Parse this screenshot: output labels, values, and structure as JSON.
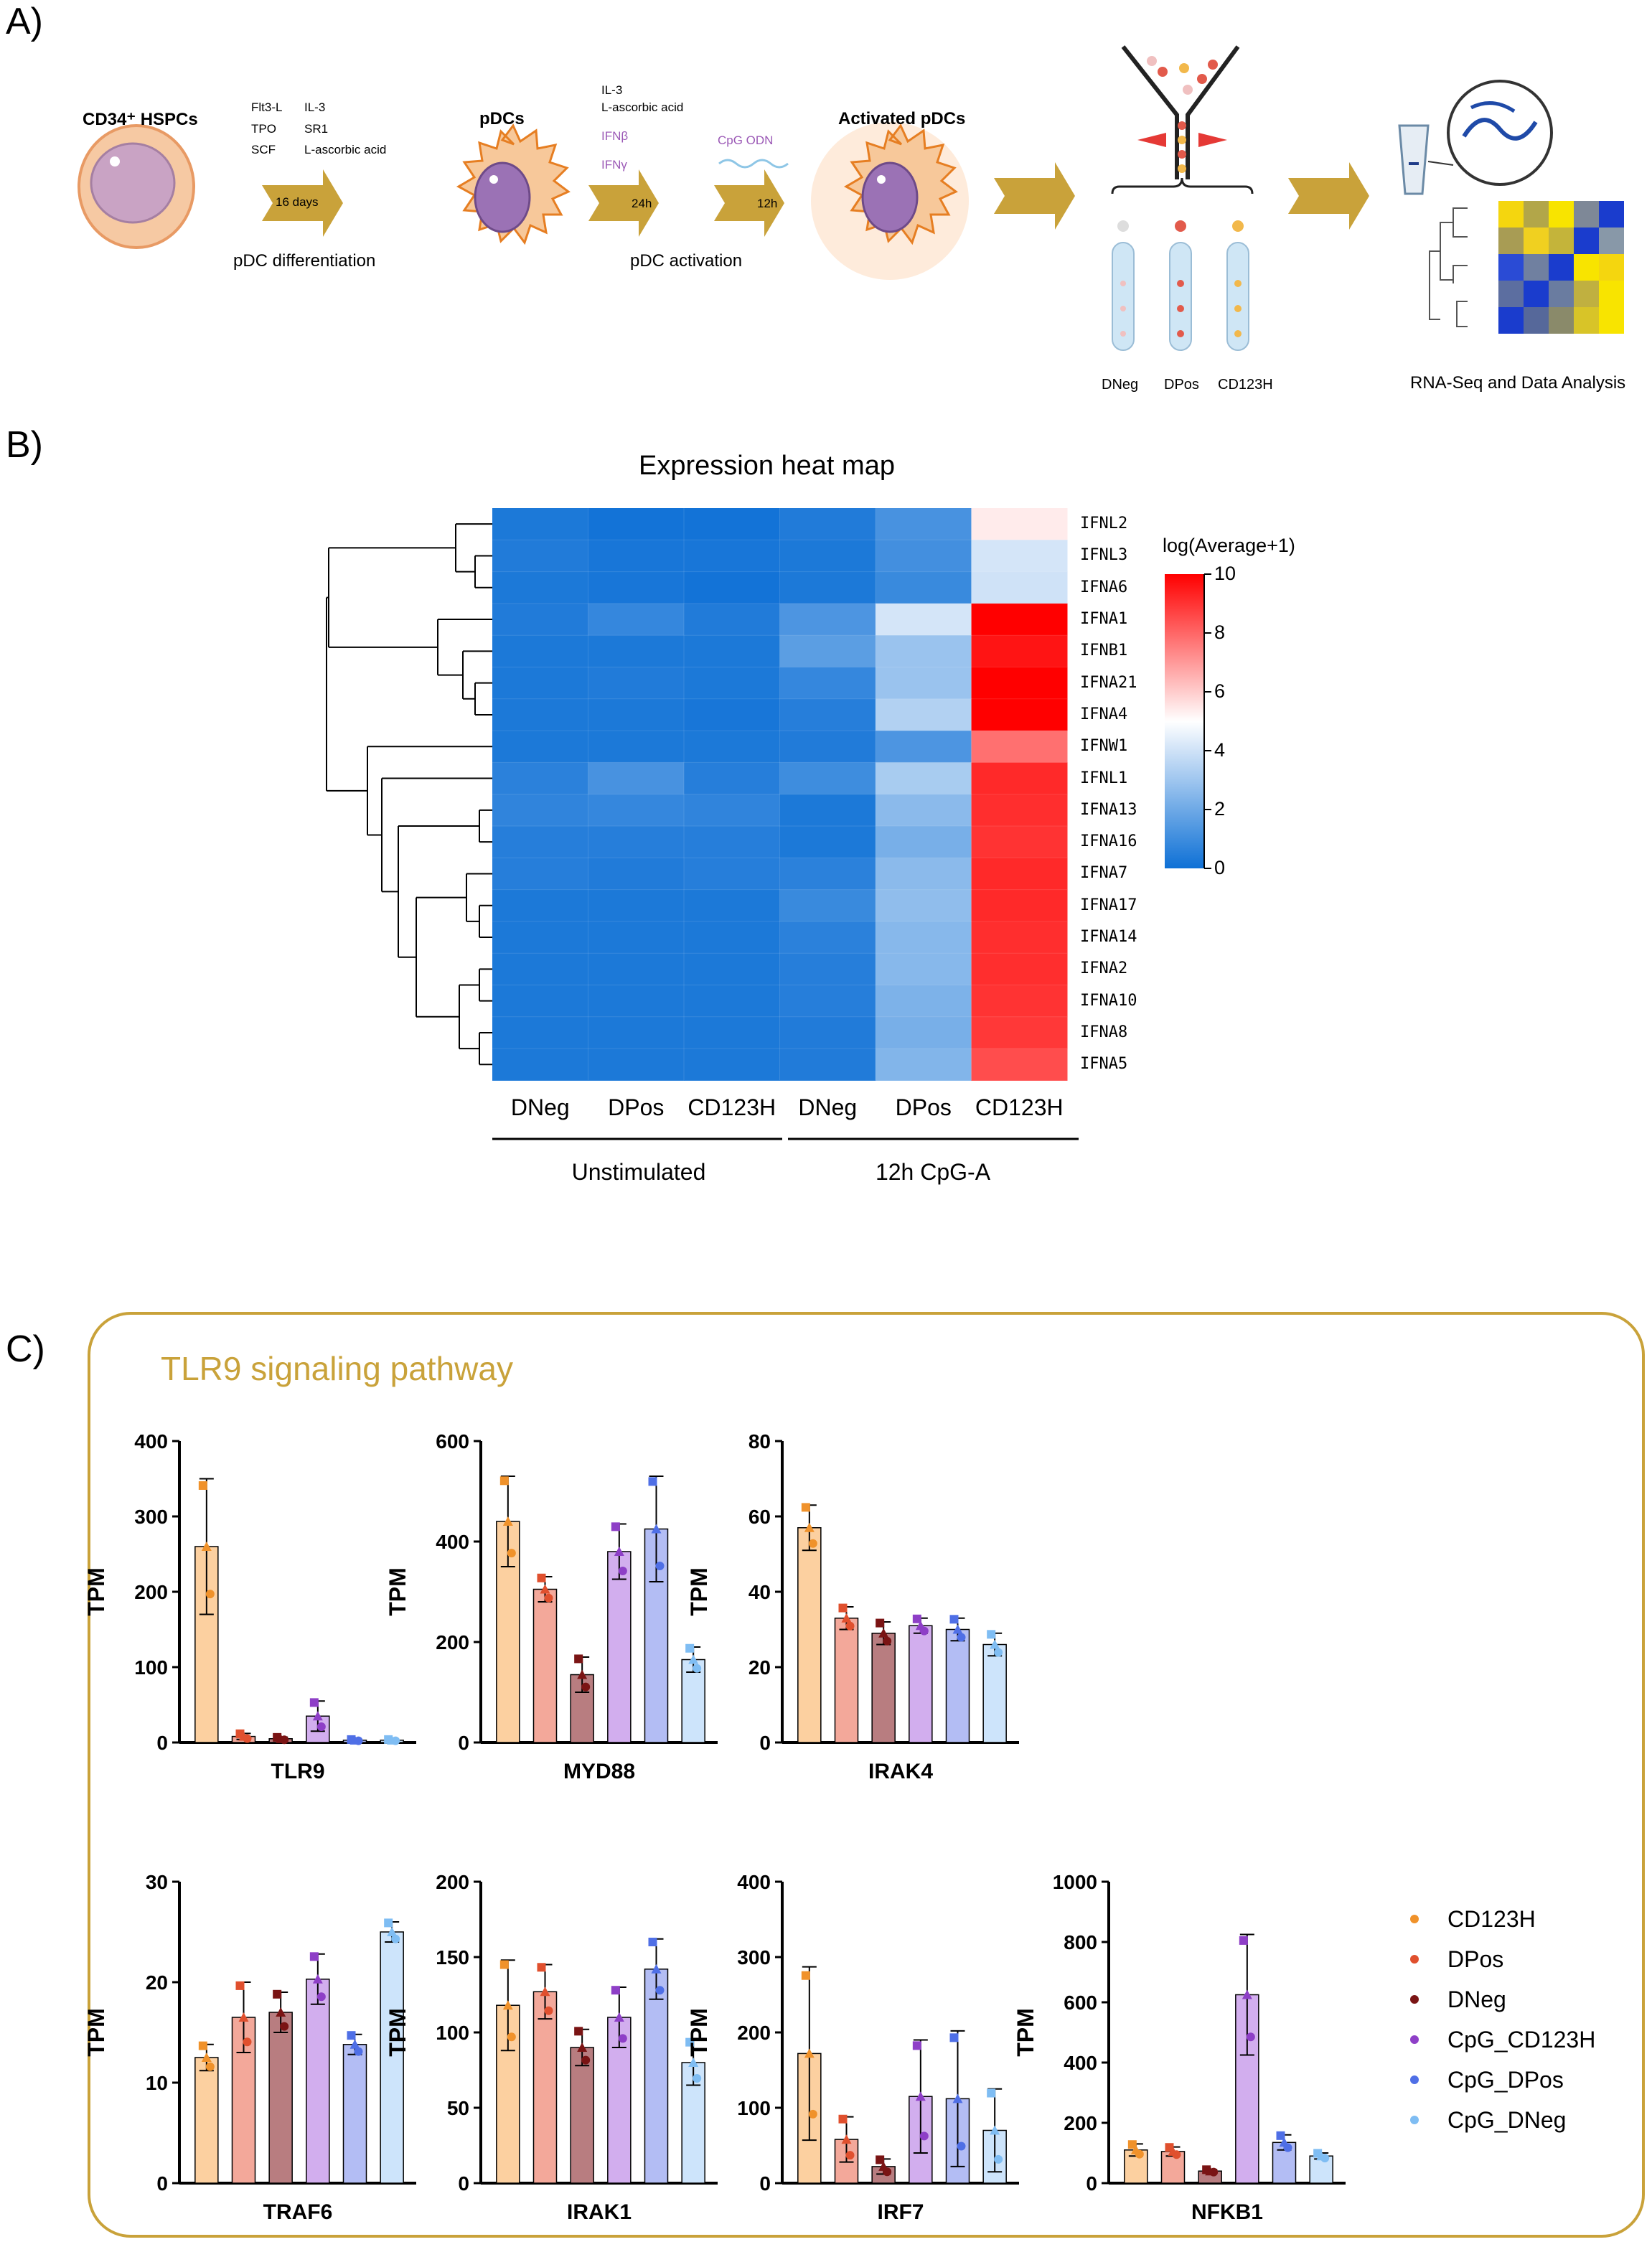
{
  "panel_labels": {
    "a": "A)",
    "b": "B)",
    "c": "C)"
  },
  "panelA": {
    "start_cell": "CD34⁺ HSPCs",
    "diff_factors_col1": [
      "Flt3-L",
      "TPO",
      "SCF"
    ],
    "diff_factors_col2": [
      "IL-3",
      "SR1",
      "L-ascorbic acid"
    ],
    "diff_duration": "16 days",
    "diff_step": "pDC differentiation",
    "pdc_label": "pDCs",
    "act_factors_top": [
      "IL-3",
      "L-ascorbic acid"
    ],
    "act_factors_purple": [
      "IFNβ",
      "IFNγ"
    ],
    "act_duration": "24h",
    "cpg_label": "CpG ODN",
    "cpg_duration": "12h",
    "act_step": "pDC activation",
    "activated_label": "Activated pDCs",
    "tubes": [
      "DNeg",
      "DPos",
      "CD123H"
    ],
    "final_step": "RNA-Seq and Data Analysis"
  },
  "heatmap": {
    "title": "Expression heat map",
    "rows": [
      "IFNL2",
      "IFNL3",
      "IFNA6",
      "IFNA1",
      "IFNB1",
      "IFNA21",
      "IFNA4",
      "IFNW1",
      "IFNL1",
      "IFNA13",
      "IFNA16",
      "IFNA7",
      "IFNA17",
      "IFNA14",
      "IFNA2",
      "IFNA10",
      "IFNA8",
      "IFNA5"
    ],
    "columns": [
      "DNeg",
      "DPos",
      "CD123H",
      "DNeg",
      "DPos",
      "CD123H"
    ],
    "groups": [
      "Unstimulated",
      "12h CpG-A"
    ],
    "colorbar_title": "log(Average+1)",
    "colorbar_ticks": [
      "10",
      "8",
      "6",
      "4",
      "2",
      "0"
    ],
    "values": [
      [
        0.3,
        0.1,
        0.1,
        0.4,
        1.2,
        5.4
      ],
      [
        0.4,
        0.2,
        0.2,
        0.3,
        1.1,
        4.1
      ],
      [
        0.3,
        0.2,
        0.1,
        0.3,
        0.9,
        4.0
      ],
      [
        0.4,
        0.8,
        0.4,
        1.3,
        4.1,
        10.0
      ],
      [
        0.3,
        0.3,
        0.3,
        1.6,
        2.9,
        9.6
      ],
      [
        0.3,
        0.4,
        0.3,
        0.8,
        2.9,
        10.0
      ],
      [
        0.3,
        0.3,
        0.2,
        0.5,
        3.4,
        10.0
      ],
      [
        0.3,
        0.3,
        0.3,
        0.4,
        1.3,
        7.8
      ],
      [
        0.6,
        1.2,
        0.5,
        1.0,
        3.2,
        9.2
      ],
      [
        0.7,
        0.8,
        0.7,
        0.3,
        2.6,
        9.1
      ],
      [
        0.5,
        0.5,
        0.5,
        0.3,
        2.2,
        9.0
      ],
      [
        0.5,
        0.4,
        0.5,
        0.6,
        2.6,
        9.2
      ],
      [
        0.3,
        0.3,
        0.3,
        0.9,
        2.7,
        9.2
      ],
      [
        0.3,
        0.3,
        0.3,
        0.6,
        2.5,
        9.1
      ],
      [
        0.3,
        0.3,
        0.3,
        0.5,
        2.5,
        9.1
      ],
      [
        0.3,
        0.3,
        0.3,
        0.5,
        2.3,
        9.0
      ],
      [
        0.3,
        0.3,
        0.3,
        0.4,
        2.2,
        8.9
      ],
      [
        0.3,
        0.3,
        0.3,
        0.4,
        2.4,
        8.5
      ]
    ]
  },
  "chart_data": [
    {
      "type": "bar",
      "title": "TLR9",
      "ylabel": "TPM",
      "ylim": [
        0,
        400
      ],
      "yticks": [
        0,
        100,
        200,
        300,
        400
      ],
      "categories": [
        "CD123H",
        "DPos",
        "DNeg",
        "CpG_CD123H",
        "CpG_DPos",
        "CpG_DNeg"
      ],
      "values": [
        260,
        8,
        5,
        35,
        3,
        3
      ],
      "errors": [
        90,
        4,
        2,
        20,
        1,
        1
      ]
    },
    {
      "type": "bar",
      "title": "MYD88",
      "ylabel": "TPM",
      "ylim": [
        0,
        600
      ],
      "yticks": [
        0,
        200,
        400,
        600
      ],
      "categories": [
        "CD123H",
        "DPos",
        "DNeg",
        "CpG_CD123H",
        "CpG_DPos",
        "CpG_DNeg"
      ],
      "values": [
        440,
        305,
        135,
        380,
        425,
        165
      ],
      "errors": [
        90,
        25,
        35,
        55,
        105,
        25
      ]
    },
    {
      "type": "bar",
      "title": "IRAK4",
      "ylabel": "TPM",
      "ylim": [
        0,
        80
      ],
      "yticks": [
        0,
        20,
        40,
        60,
        80
      ],
      "categories": [
        "CD123H",
        "DPos",
        "DNeg",
        "CpG_CD123H",
        "CpG_DPos",
        "CpG_DNeg"
      ],
      "values": [
        57,
        33,
        29,
        31,
        30,
        26
      ],
      "errors": [
        6,
        3,
        3,
        2,
        3,
        3
      ]
    },
    {
      "type": "bar",
      "title": "TRAF6",
      "ylabel": "TPM",
      "ylim": [
        0,
        30
      ],
      "yticks": [
        0,
        10,
        20,
        30
      ],
      "categories": [
        "CD123H",
        "DPos",
        "DNeg",
        "CpG_CD123H",
        "CpG_DPos",
        "CpG_DNeg"
      ],
      "values": [
        12.5,
        16.5,
        17,
        20.3,
        13.8,
        25
      ],
      "errors": [
        1.3,
        3.5,
        2,
        2.5,
        1,
        1
      ]
    },
    {
      "type": "bar",
      "title": "IRAK1",
      "ylabel": "TPM",
      "ylim": [
        0,
        200
      ],
      "yticks": [
        0,
        50,
        100,
        150,
        200
      ],
      "categories": [
        "CD123H",
        "DPos",
        "DNeg",
        "CpG_CD123H",
        "CpG_DPos",
        "CpG_DNeg"
      ],
      "values": [
        118,
        127,
        90,
        110,
        142,
        80
      ],
      "errors": [
        30,
        18,
        12,
        20,
        20,
        15
      ]
    },
    {
      "type": "bar",
      "title": "IRF7",
      "ylabel": "TPM",
      "ylim": [
        0,
        400
      ],
      "yticks": [
        0,
        100,
        200,
        300,
        400
      ],
      "categories": [
        "CD123H",
        "DPos",
        "DNeg",
        "CpG_CD123H",
        "CpG_DPos",
        "CpG_DNeg"
      ],
      "values": [
        172,
        58,
        22,
        115,
        112,
        70
      ],
      "errors": [
        115,
        30,
        10,
        75,
        90,
        55
      ]
    },
    {
      "type": "bar",
      "title": "NFKB1",
      "ylabel": "TPM",
      "ylim": [
        0,
        1000
      ],
      "yticks": [
        0,
        200,
        400,
        600,
        800,
        1000
      ],
      "categories": [
        "CD123H",
        "DPos",
        "DNeg",
        "CpG_CD123H",
        "CpG_DPos",
        "CpG_DNeg"
      ],
      "values": [
        110,
        105,
        40,
        625,
        135,
        90
      ],
      "errors": [
        20,
        15,
        5,
        200,
        25,
        10
      ]
    }
  ],
  "panelC": {
    "title": "TLR9 signaling pathway",
    "legend": [
      {
        "label": "CD123H",
        "color": "#f0922b",
        "fill": "#fcd0a0"
      },
      {
        "label": "DPos",
        "color": "#e0502e",
        "fill": "#f3a89a"
      },
      {
        "label": "DNeg",
        "color": "#7a1414",
        "fill": "#b87d80"
      },
      {
        "label": "CpG_CD123H",
        "color": "#8e3fc7",
        "fill": "#d2aeee"
      },
      {
        "label": "CpG_DPos",
        "color": "#4f6fe6",
        "fill": "#b3bdf4"
      },
      {
        "label": "CpG_DNeg",
        "color": "#7fbdf3",
        "fill": "#cde4fb"
      }
    ]
  },
  "colors": {
    "gold": "#c9a23a",
    "arrow": "#c9a23a"
  }
}
